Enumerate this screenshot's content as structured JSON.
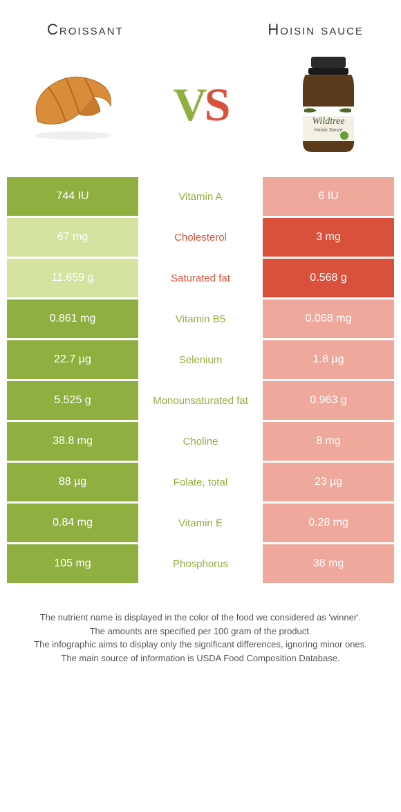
{
  "foods": {
    "left": {
      "title": "Croissant"
    },
    "right": {
      "title": "Hoisin sauce"
    }
  },
  "vs": {
    "v": "V",
    "s": "S"
  },
  "colors": {
    "left_win": "#8fb040",
    "left_lose": "#d4e39f",
    "right_win": "#d9503b",
    "right_lose": "#efa89c",
    "mid_green": "#8fb040",
    "mid_red": "#d9503b"
  },
  "rows": [
    {
      "left": "744 IU",
      "nutrient": "Vitamin A",
      "right": "6 IU",
      "winner": "left"
    },
    {
      "left": "67 mg",
      "nutrient": "Cholesterol",
      "right": "3 mg",
      "winner": "right"
    },
    {
      "left": "11.659 g",
      "nutrient": "Saturated fat",
      "right": "0.568 g",
      "winner": "right"
    },
    {
      "left": "0.861 mg",
      "nutrient": "Vitamin B5",
      "right": "0.068 mg",
      "winner": "left"
    },
    {
      "left": "22.7 µg",
      "nutrient": "Selenium",
      "right": "1.8 µg",
      "winner": "left"
    },
    {
      "left": "5.525 g",
      "nutrient": "Monounsaturated fat",
      "right": "0.963 g",
      "winner": "left"
    },
    {
      "left": "38.8 mg",
      "nutrient": "Choline",
      "right": "8 mg",
      "winner": "left"
    },
    {
      "left": "88 µg",
      "nutrient": "Folate, total",
      "right": "23 µg",
      "winner": "left"
    },
    {
      "left": "0.84 mg",
      "nutrient": "Vitamin E",
      "right": "0.28 mg",
      "winner": "left"
    },
    {
      "left": "105 mg",
      "nutrient": "Phosphorus",
      "right": "38 mg",
      "winner": "left"
    }
  ],
  "footer": {
    "line1": "The nutrient name is displayed in the color of the food we considered as 'winner'.",
    "line2": "The amounts are specified per 100 gram of the product.",
    "line3": "The infographic aims to display only the significant differences, ignoring minor ones.",
    "line4": "The main source of information is USDA Food Composition Database."
  },
  "jar": {
    "brand": "Wildtree",
    "sub": "Hoisin Sauce"
  }
}
